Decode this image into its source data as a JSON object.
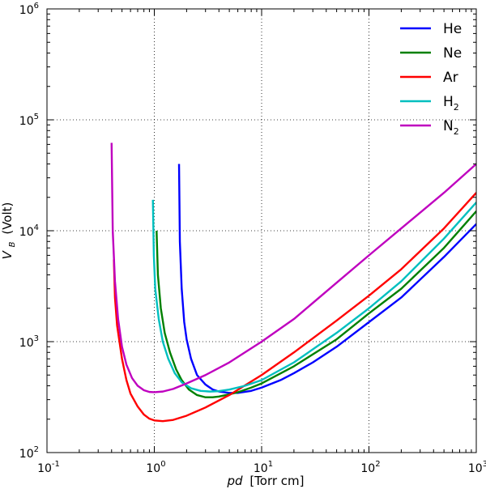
{
  "chart_data": {
    "type": "line",
    "xscale": "log",
    "yscale": "log",
    "xlim": [
      0.1,
      1000
    ],
    "ylim": [
      100,
      1000000
    ],
    "xlabel_math": "pd",
    "xlabel_unit": "[Torr cm]",
    "ylabel_math": "V",
    "ylabel_sub": "B",
    "ylabel_unit": "(Volt)",
    "x_ticks": [
      {
        "value": 0.1,
        "base": "10",
        "exp": "-1"
      },
      {
        "value": 1,
        "base": "10",
        "exp": "0"
      },
      {
        "value": 10,
        "base": "10",
        "exp": "1"
      },
      {
        "value": 100,
        "base": "10",
        "exp": "2"
      },
      {
        "value": 1000,
        "base": "10",
        "exp": "3"
      }
    ],
    "y_ticks": [
      {
        "value": 100,
        "base": "10",
        "exp": "2"
      },
      {
        "value": 1000,
        "base": "10",
        "exp": "3"
      },
      {
        "value": 10000,
        "base": "10",
        "exp": "4"
      },
      {
        "value": 100000,
        "base": "10",
        "exp": "5"
      },
      {
        "value": 1000000,
        "base": "10",
        "exp": "6"
      }
    ],
    "grid": true,
    "grid_style": "dotted",
    "legend_position": "top-right",
    "series": [
      {
        "name": "He",
        "name_main": "He",
        "name_sub": "",
        "color": "#0000ff",
        "points": [
          [
            1.7,
            40000
          ],
          [
            1.73,
            8000
          ],
          [
            1.8,
            3000
          ],
          [
            1.9,
            1500
          ],
          [
            2.0,
            1050
          ],
          [
            2.2,
            700
          ],
          [
            2.5,
            500
          ],
          [
            3.0,
            410
          ],
          [
            3.5,
            370
          ],
          [
            4.0,
            355
          ],
          [
            5.0,
            345
          ],
          [
            6.0,
            345
          ],
          [
            8.0,
            360
          ],
          [
            10.0,
            385
          ],
          [
            15,
            450
          ],
          [
            20,
            520
          ],
          [
            30,
            650
          ],
          [
            50,
            900
          ],
          [
            100,
            1500
          ],
          [
            200,
            2500
          ],
          [
            500,
            5800
          ],
          [
            1000,
            11500
          ]
        ]
      },
      {
        "name": "Ne",
        "name_main": "Ne",
        "name_sub": "",
        "color": "#008000",
        "points": [
          [
            1.05,
            10000
          ],
          [
            1.08,
            4000
          ],
          [
            1.15,
            2000
          ],
          [
            1.25,
            1200
          ],
          [
            1.4,
            800
          ],
          [
            1.6,
            560
          ],
          [
            1.8,
            450
          ],
          [
            2.1,
            370
          ],
          [
            2.5,
            330
          ],
          [
            3.0,
            315
          ],
          [
            3.5,
            315
          ],
          [
            4.0,
            320
          ],
          [
            5.0,
            335
          ],
          [
            6.0,
            350
          ],
          [
            8.0,
            385
          ],
          [
            10,
            420
          ],
          [
            20,
            600
          ],
          [
            50,
            1050
          ],
          [
            100,
            1800
          ],
          [
            200,
            3000
          ],
          [
            500,
            7000
          ],
          [
            1000,
            15000
          ]
        ]
      },
      {
        "name": "Ar",
        "name_main": "Ar",
        "name_sub": "",
        "color": "#ff0000",
        "points": [
          [
            0.42,
            5500
          ],
          [
            0.43,
            2500
          ],
          [
            0.45,
            1400
          ],
          [
            0.5,
            700
          ],
          [
            0.55,
            450
          ],
          [
            0.6,
            340
          ],
          [
            0.7,
            260
          ],
          [
            0.8,
            220
          ],
          [
            0.9,
            202
          ],
          [
            1.0,
            195
          ],
          [
            1.2,
            192
          ],
          [
            1.5,
            197
          ],
          [
            2.0,
            215
          ],
          [
            3.0,
            255
          ],
          [
            5.0,
            330
          ],
          [
            10,
            500
          ],
          [
            20,
            800
          ],
          [
            50,
            1550
          ],
          [
            100,
            2600
          ],
          [
            200,
            4500
          ],
          [
            500,
            10500
          ],
          [
            1000,
            22000
          ]
        ]
      },
      {
        "name": "H2",
        "name_main": "H",
        "name_sub": "2",
        "color": "#00bfbf",
        "points": [
          [
            0.97,
            19000
          ],
          [
            0.99,
            6000
          ],
          [
            1.02,
            3000
          ],
          [
            1.1,
            1600
          ],
          [
            1.2,
            1000
          ],
          [
            1.35,
            700
          ],
          [
            1.55,
            520
          ],
          [
            1.8,
            430
          ],
          [
            2.2,
            380
          ],
          [
            2.7,
            360
          ],
          [
            3.3,
            355
          ],
          [
            4.0,
            358
          ],
          [
            5.0,
            370
          ],
          [
            7.0,
            400
          ],
          [
            10,
            450
          ],
          [
            20,
            650
          ],
          [
            50,
            1200
          ],
          [
            100,
            2000
          ],
          [
            200,
            3500
          ],
          [
            500,
            8500
          ],
          [
            1000,
            18000
          ]
        ]
      },
      {
        "name": "N2",
        "name_main": "N",
        "name_sub": "2",
        "color": "#bf00bf",
        "points": [
          [
            0.4,
            62000
          ],
          [
            0.41,
            10000
          ],
          [
            0.43,
            3500
          ],
          [
            0.46,
            1600
          ],
          [
            0.5,
            900
          ],
          [
            0.55,
            620
          ],
          [
            0.62,
            470
          ],
          [
            0.7,
            400
          ],
          [
            0.8,
            365
          ],
          [
            0.9,
            352
          ],
          [
            1.0,
            350
          ],
          [
            1.2,
            355
          ],
          [
            1.5,
            375
          ],
          [
            2.0,
            420
          ],
          [
            3.0,
            500
          ],
          [
            5.0,
            650
          ],
          [
            10,
            1000
          ],
          [
            20,
            1600
          ],
          [
            50,
            3400
          ],
          [
            100,
            6000
          ],
          [
            200,
            10500
          ],
          [
            500,
            22000
          ],
          [
            1000,
            40000
          ]
        ]
      }
    ]
  }
}
